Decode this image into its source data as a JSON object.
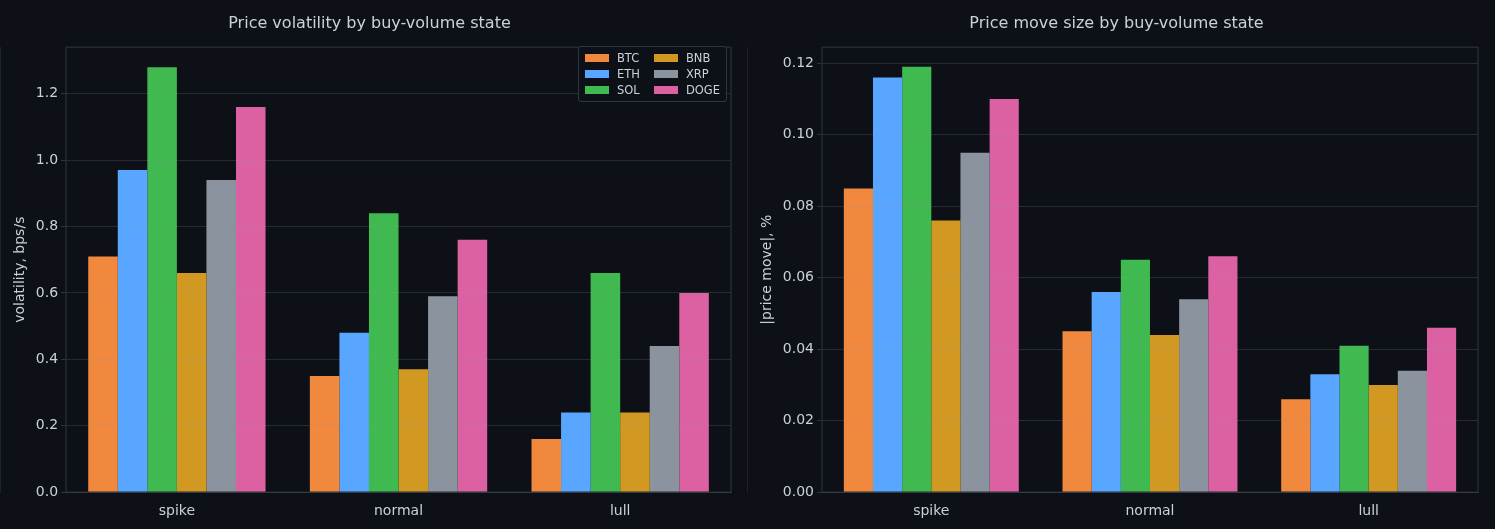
{
  "chart_data": [
    {
      "type": "bar",
      "title": "Price volatility by buy-volume state",
      "ylabel": "volatility, bps/s",
      "categories": [
        "spike",
        "normal",
        "lull"
      ],
      "series": [
        {
          "name": "BTC",
          "color": "#f0883e",
          "values": [
            0.71,
            0.35,
            0.16
          ]
        },
        {
          "name": "ETH",
          "color": "#58a6ff",
          "values": [
            0.97,
            0.48,
            0.24
          ]
        },
        {
          "name": "SOL",
          "color": "#3fb950",
          "values": [
            1.28,
            0.84,
            0.66
          ]
        },
        {
          "name": "BNB",
          "color": "#d29922",
          "values": [
            0.66,
            0.37,
            0.24
          ]
        },
        {
          "name": "XRP",
          "color": "#8b949e",
          "values": [
            0.94,
            0.59,
            0.44
          ]
        },
        {
          "name": "DOGE",
          "color": "#db61a2",
          "values": [
            1.16,
            0.76,
            0.6
          ]
        }
      ],
      "ylim": [
        0,
        1.34
      ],
      "yticks": [
        {
          "value": 0,
          "label": "0.0"
        },
        0.2,
        0.4,
        0.6,
        0.8,
        {
          "value": 1,
          "label": "1.0"
        },
        1.2
      ],
      "grid": "y",
      "legend": "top right"
    },
    {
      "type": "bar",
      "title": "Price move size by buy-volume state",
      "ylabel": "|price move|, %",
      "categories": [
        "spike",
        "normal",
        "lull"
      ],
      "series": [
        {
          "color": "#f0883e",
          "values": [
            0.085,
            0.045,
            0.026
          ]
        },
        {
          "color": "#58a6ff",
          "values": [
            0.116,
            0.056,
            0.033
          ]
        },
        {
          "color": "#3fb950",
          "values": [
            0.119,
            0.065,
            0.041
          ]
        },
        {
          "color": "#d29922",
          "values": [
            0.076,
            0.044,
            0.03
          ]
        },
        {
          "color": "#8b949e",
          "values": [
            0.095,
            0.054,
            0.034
          ]
        },
        {
          "color": "#db61a2",
          "values": [
            0.11,
            0.066,
            0.046
          ]
        }
      ],
      "ylim": [
        0,
        0.1245
      ],
      "yticks": [
        {
          "value": 0,
          "label": "0.00"
        },
        0.02,
        0.04,
        0.06,
        0.08,
        {
          "value": 0.1,
          "label": "0.10"
        },
        0.12
      ],
      "grid": "y"
    }
  ]
}
